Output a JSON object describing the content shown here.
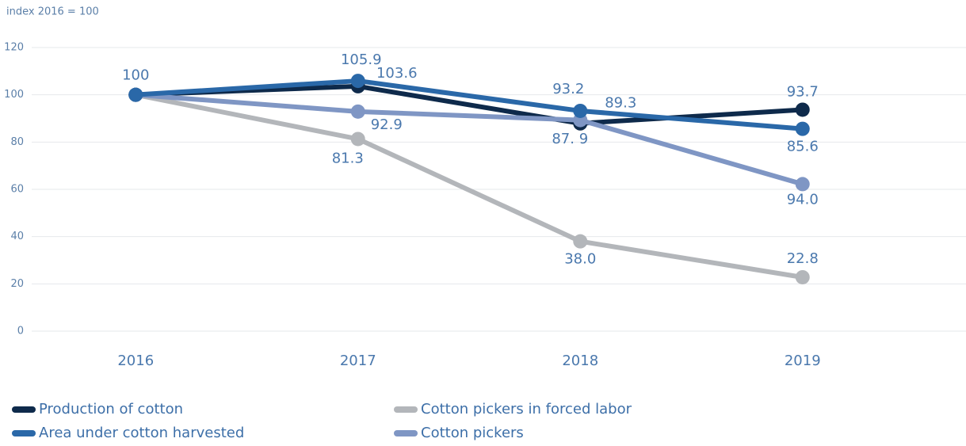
{
  "chart_data": {
    "type": "line",
    "y_label": "index 2016 = 100",
    "categories": [
      "2016",
      "2017",
      "2018",
      "2019"
    ],
    "series": [
      {
        "name": "Production of cotton",
        "color": "#0e2a4b",
        "values": [
          100,
          103.6,
          87.9,
          93.7
        ],
        "value_labels": [
          "100",
          "103.6",
          "87. 9",
          "93.7"
        ]
      },
      {
        "name": "Area under cotton harvested",
        "color": "#2a68a8",
        "values": [
          100,
          105.9,
          93.2,
          85.6
        ],
        "value_labels": [
          null,
          "105.9",
          "93.2",
          "85.6"
        ]
      },
      {
        "name": "Cotton pickers in forced labor",
        "color": "#b3b6ba",
        "values": [
          100,
          81.3,
          38.0,
          22.8
        ],
        "value_labels": [
          null,
          "81.3",
          "38.0",
          "22.8"
        ]
      },
      {
        "name": "Cotton pickers",
        "color": "#7f96c4",
        "values": [
          100,
          92.9,
          89.3,
          62.2
        ],
        "value_labels": [
          null,
          "92.9",
          "89.3",
          null
        ]
      }
    ],
    "annotations": [
      {
        "text": "94.0"
      }
    ],
    "ylim": [
      0,
      120
    ],
    "yticks": [
      0,
      20,
      40,
      60,
      80,
      100,
      120
    ],
    "grid": true
  }
}
